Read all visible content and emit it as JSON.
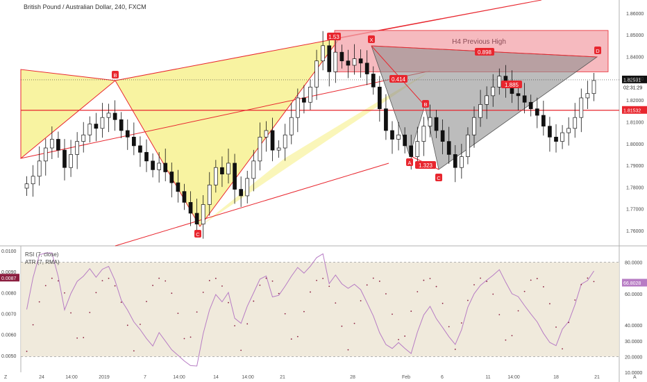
{
  "header": {
    "title": "British Pound / Australian Dollar, 240, FXCM"
  },
  "colors": {
    "bull": "#111111",
    "bear": "#111111",
    "pattern_yellow": "#f6f08a",
    "pattern_grey": "#8f8f8f",
    "zone_red": "#f3a3aa",
    "line_red": "#e8262e",
    "rsi": "#b77cc4",
    "atr": "#8b1e3f",
    "rsi_band": "#ede6d6"
  },
  "zone": {
    "label": "H4 Previous High"
  },
  "price_tags": {
    "last": "1.82931",
    "countdown": "02:31:29",
    "level": "1.81532"
  },
  "point_labels": {
    "b_left": "B",
    "c_left": "C",
    "x": "X",
    "a": "A",
    "b": "B",
    "c": "C",
    "d": "D"
  },
  "ratio_labels": {
    "r153": "1.53",
    "r0414": "0.414",
    "r1323": "1.323",
    "r1885": "1.885",
    "r0898": "0.898"
  },
  "indicator": {
    "rsi_label": "RSI (7, close)",
    "atr_label": "ATR (7, RMA)",
    "atr_value": "0.0087",
    "rsi_value": "66.8028"
  },
  "footer": {
    "left": "Z",
    "right": "A"
  },
  "chart_data": {
    "type": "candlestick",
    "title": "British Pound / Australian Dollar, 240, FXCM",
    "y_axis": {
      "ticks": [
        "1.86000",
        "1.85000",
        "1.84000",
        "1.83000",
        "1.82000",
        "1.81000",
        "1.80000",
        "1.79000",
        "1.78000",
        "1.77000",
        "1.76000"
      ],
      "ylim": [
        1.753,
        1.866
      ]
    },
    "x_axis": {
      "ticks": [
        "24",
        "14:00",
        "2019",
        "7",
        "14:00",
        "14",
        "14:00",
        "21",
        "28",
        "Feb",
        "6",
        "11",
        "14:00",
        "18",
        "21"
      ]
    },
    "ohlc_close_path": [
      1.7815,
      1.785,
      1.792,
      1.798,
      1.802,
      1.797,
      1.789,
      1.795,
      1.801,
      1.804,
      1.809,
      1.807,
      1.812,
      1.814,
      1.811,
      1.806,
      1.803,
      1.799,
      1.796,
      1.792,
      1.788,
      1.791,
      1.787,
      1.782,
      1.778,
      1.773,
      1.768,
      1.763,
      1.772,
      1.781,
      1.789,
      1.786,
      1.791,
      1.779,
      1.776,
      1.784,
      1.792,
      1.803,
      1.806,
      1.797,
      1.798,
      1.804,
      1.812,
      1.821,
      1.819,
      1.826,
      1.838,
      1.845,
      1.833,
      1.842,
      1.838,
      1.836,
      1.839,
      1.837,
      1.832,
      1.826,
      1.816,
      1.806,
      1.802,
      1.804,
      1.799,
      1.794,
      1.801,
      1.808,
      1.812,
      1.806,
      1.801,
      1.795,
      1.789,
      1.794,
      1.804,
      1.812,
      1.818,
      1.822,
      1.826,
      1.831,
      1.827,
      1.823,
      1.822,
      1.819,
      1.816,
      1.813,
      1.808,
      1.803,
      1.801,
      1.805,
      1.807,
      1.812,
      1.821,
      1.823,
      1.829
    ],
    "rsi": {
      "name": "RSI (7, close)",
      "ylim": [
        10,
        90
      ],
      "band": [
        20,
        80
      ],
      "ticks": [
        "80.0000",
        "60.0000",
        "40.0000",
        "30.0000",
        "20.0000",
        "10.0000"
      ],
      "last": 66.8028
    },
    "atr": {
      "name": "ATR (7, RMA)",
      "ylim": [
        0.0042,
        0.0102
      ],
      "ticks": [
        "0.0100",
        "0.0090",
        "0.0080",
        "0.0070",
        "0.0060",
        "0.0050"
      ],
      "last": 0.0087
    },
    "levels": {
      "previous_high_zone": [
        1.833,
        1.852
      ],
      "support": 1.81532,
      "last_price": 1.82931
    }
  }
}
